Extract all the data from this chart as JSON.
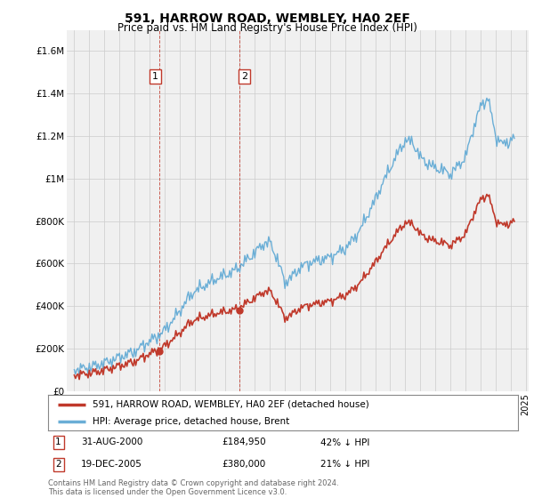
{
  "title": "591, HARROW ROAD, WEMBLEY, HA0 2EF",
  "subtitle": "Price paid vs. HM Land Registry's House Price Index (HPI)",
  "ylim": [
    0,
    1700000
  ],
  "yticks": [
    0,
    200000,
    400000,
    600000,
    800000,
    1000000,
    1200000,
    1400000,
    1600000
  ],
  "ytick_labels": [
    "£0",
    "£200K",
    "£400K",
    "£600K",
    "£800K",
    "£1M",
    "£1.2M",
    "£1.4M",
    "£1.6M"
  ],
  "hpi_color": "#6aaed6",
  "price_color": "#c0392b",
  "marker_color": "#c0392b",
  "grid_color": "#cccccc",
  "bg_color": "#ffffff",
  "plot_bg_color": "#f0f0f0",
  "legend_label_price": "591, HARROW ROAD, WEMBLEY, HA0 2EF (detached house)",
  "legend_label_hpi": "HPI: Average price, detached house, Brent",
  "transaction1_label": "1",
  "transaction1_date": "31-AUG-2000",
  "transaction1_price": "£184,950",
  "transaction1_hpi": "42% ↓ HPI",
  "transaction1_year": 2000.67,
  "transaction1_value": 184950,
  "transaction2_label": "2",
  "transaction2_date": "19-DEC-2005",
  "transaction2_price": "£380,000",
  "transaction2_hpi": "21% ↓ HPI",
  "transaction2_year": 2005.97,
  "transaction2_value": 380000,
  "footer": "Contains HM Land Registry data © Crown copyright and database right 2024.\nThis data is licensed under the Open Government Licence v3.0."
}
